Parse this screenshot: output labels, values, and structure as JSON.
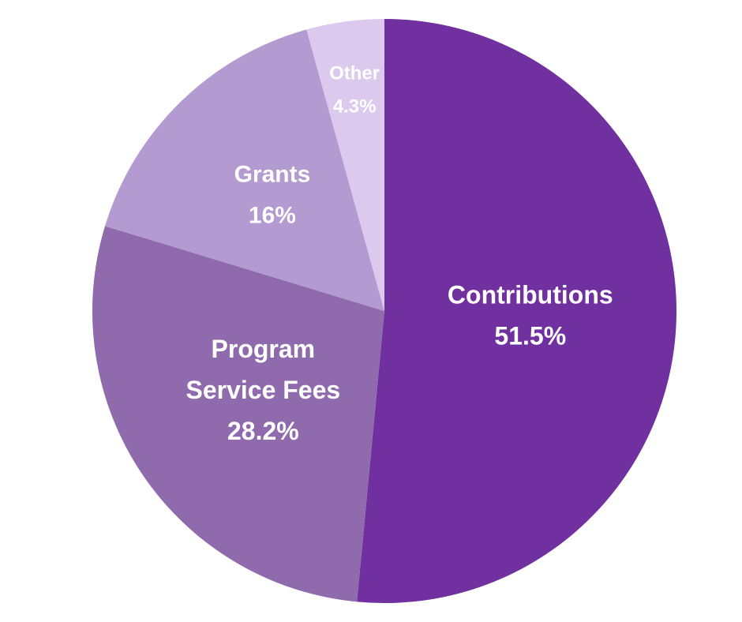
{
  "chart_data": {
    "type": "pie",
    "title": "",
    "start_angle_deg": 0,
    "direction": "clockwise",
    "slices": [
      {
        "name": "Contributions",
        "label_lines": [
          "Contributions"
        ],
        "value": 51.5,
        "value_label": "51.5%",
        "color": "#7030A0"
      },
      {
        "name": "Program Service Fees",
        "label_lines": [
          "Program",
          "Service Fees"
        ],
        "value": 28.2,
        "value_label": "28.2%",
        "color": "#8F6BAE"
      },
      {
        "name": "Grants",
        "label_lines": [
          "Grants"
        ],
        "value": 16,
        "value_label": "16%",
        "color": "#B39AD0"
      },
      {
        "name": "Other",
        "label_lines": [
          "Other"
        ],
        "value": 4.3,
        "value_label": "4.3%",
        "color": "#DCC9EE"
      }
    ]
  }
}
